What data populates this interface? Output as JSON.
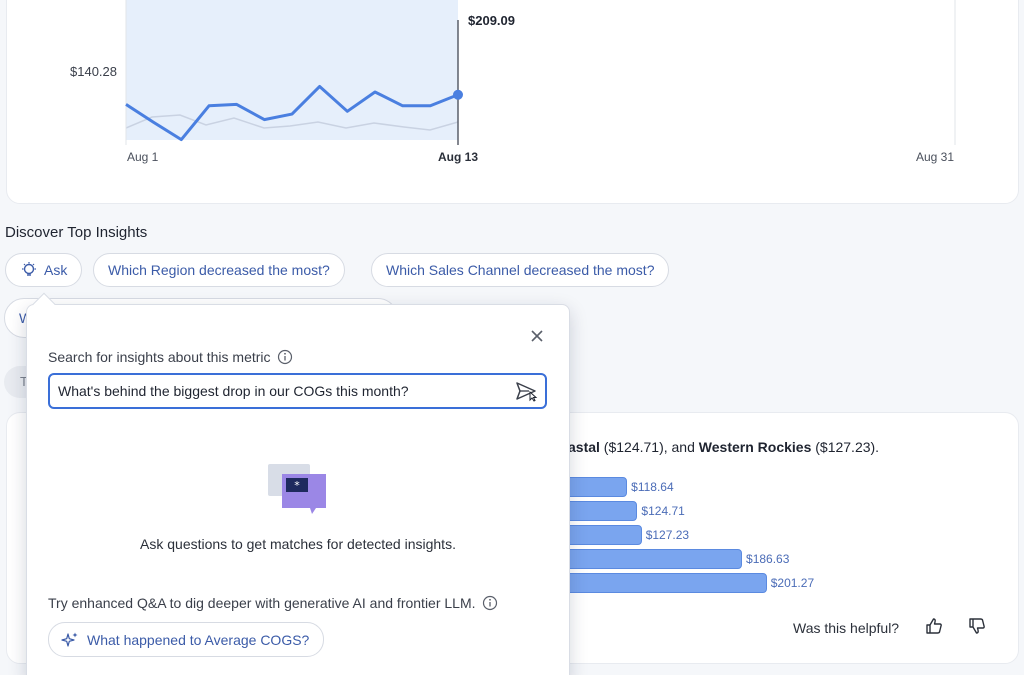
{
  "chart": {
    "y_tick": "$140.28",
    "x_ticks": [
      "Aug 1",
      "Aug 13",
      "Aug 31"
    ],
    "hover_value": "$209.09",
    "series_values": [
      202,
      176,
      151,
      200,
      202,
      180,
      188,
      228,
      192,
      220,
      200,
      200,
      216
    ]
  },
  "insights": {
    "title": "Discover Top Insights",
    "ask_label": "Ask",
    "chip_region": "Which Region decreased the most?",
    "chip_channel": "Which Sales Channel decreased the most?",
    "ghost_chip_label": "W",
    "ghost_pill_label": "T"
  },
  "insight_card": {
    "summary_prefix": "astal",
    "summary_mid": " ($124.71), and ",
    "summary_region": "Western Rockies",
    "summary_suffix": " ($127.23).",
    "bars": [
      {
        "label": "$118.64",
        "value": 118.64
      },
      {
        "label": "$124.71",
        "value": 124.71
      },
      {
        "label": "$127.23",
        "value": 127.23
      },
      {
        "label": "$186.63",
        "value": 186.63
      },
      {
        "label": "$201.27",
        "value": 201.27
      }
    ],
    "helpful_text": "Was this helpful?"
  },
  "popover": {
    "search_label": "Search for insights about this metric",
    "search_value": "What's behind the biggest drop in our COGs this month?",
    "empty_text": "Ask questions to get matches for detected insights.",
    "enhanced_text": "Try enhanced Q&A to dig deeper with generative AI and frontier LLM.",
    "ai_chip_label": "What happened to Average COGS?"
  },
  "colors": {
    "accent": "#3b6fd8",
    "line": "#4a7fe0",
    "area": "#e3eefc",
    "bar": "#7aa5ef",
    "purple": "#9b87e6"
  }
}
